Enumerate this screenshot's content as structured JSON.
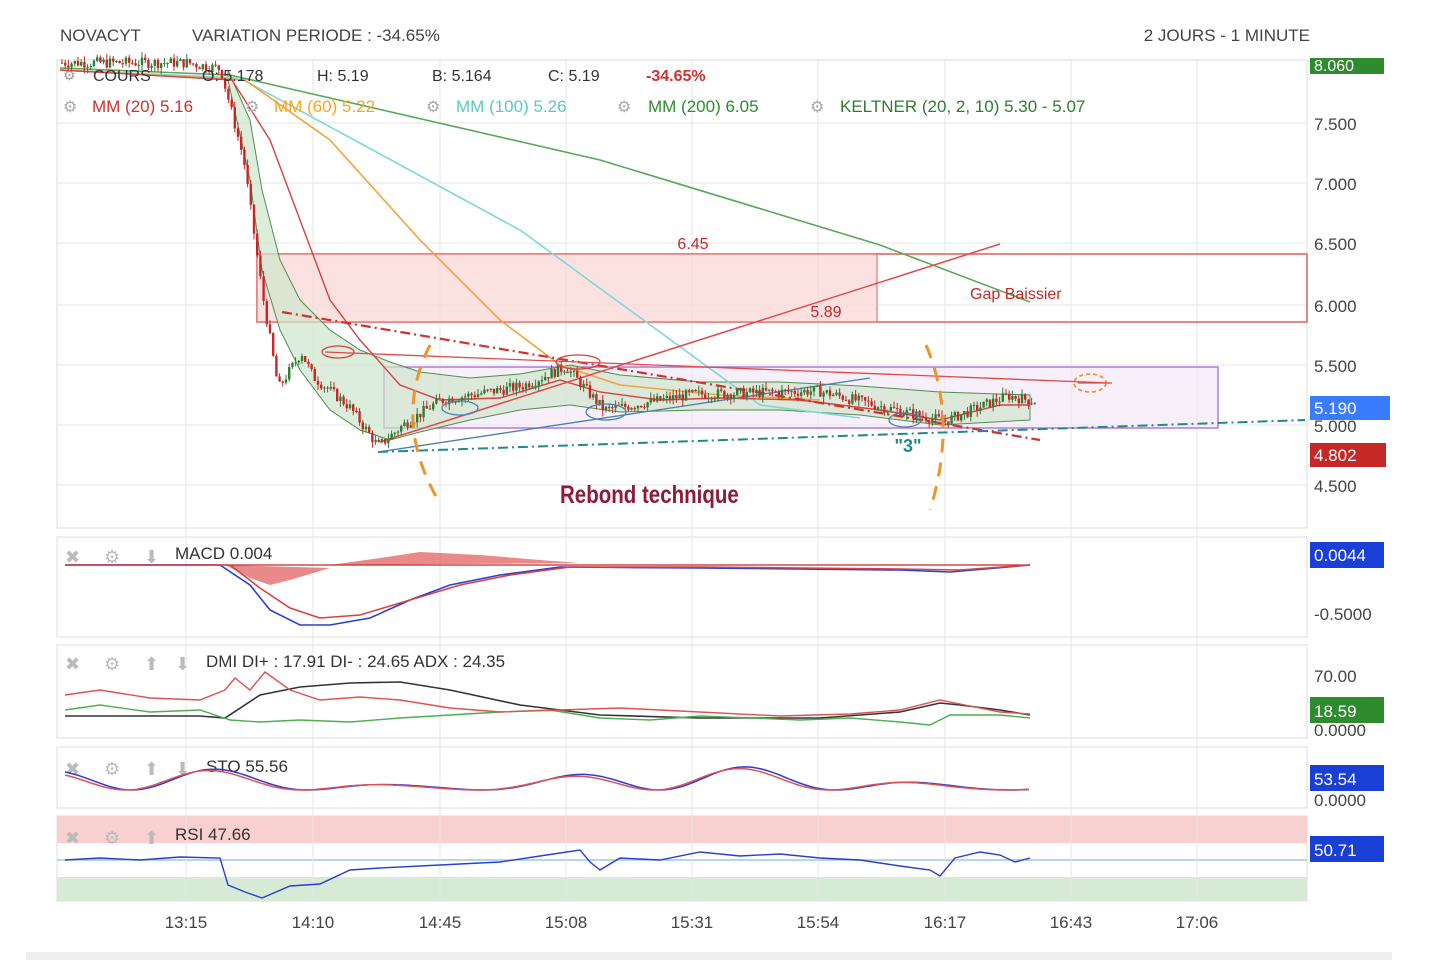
{
  "header": {
    "symbol": "NOVACYT",
    "variation": "VARIATION PERIODE : -34.65%",
    "timeframe": "2 JOURS - 1 MINUTE"
  },
  "legend": {
    "cours_label": "COURS",
    "o": "O: 5.178",
    "h": "H: 5.19",
    "b": "B: 5.164",
    "c": "C: 5.19",
    "change": "-34.65%",
    "mm20": "MM (20)  5.16",
    "mm60": "MM (60)  5.22",
    "mm100": "MM (100)  5.26",
    "mm200": "MM (200)  6.05",
    "keltner": "KELTNER (20, 2, 10)  5.30 - 5.07"
  },
  "annotations": {
    "gap_high": "6.45",
    "gap_low": "5.89",
    "gap_label": "Gap Baissier",
    "rebound": "Rebond technique",
    "wave3": "\"3\""
  },
  "price_badges": {
    "top": "8.060",
    "current": "5.190",
    "low": "4.802"
  },
  "price_axis": [
    "7.500",
    "7.000",
    "6.500",
    "6.000",
    "5.500",
    "5.000",
    "4.500"
  ],
  "time_axis": [
    "13:15",
    "14:10",
    "14:45",
    "15:08",
    "15:31",
    "15:54",
    "16:17",
    "16:43",
    "17:06"
  ],
  "macd": {
    "label": "MACD  0.004",
    "badge": "0.0044",
    "axis": [
      "-0.5000"
    ]
  },
  "dmi": {
    "label": "DMI  DI+ : 17.91  DI- : 24.65  ADX : 24.35",
    "badge": "18.59",
    "axis": [
      "70.00",
      "0.0000"
    ]
  },
  "sto": {
    "label": "STO  55.56",
    "badge": "53.54",
    "axis": [
      "0.0000"
    ]
  },
  "rsi": {
    "label": "RSI  47.66",
    "badge": "50.71"
  },
  "colors": {
    "mm20": "#d32f2f",
    "mm60": "#f5a623",
    "mm100": "#6fd3d3",
    "mm200": "#2e8b2e",
    "keltner": "#3a7d3a",
    "up": "#2e7d32",
    "down": "#c62828",
    "badge_blue": "#1a3fd6",
    "badge_red": "#c62828",
    "badge_green": "#2e8b2e"
  },
  "chart_data": {
    "type": "candlestick",
    "title": "NOVACYT",
    "timeframe": "2 JOURS - 1 MINUTE",
    "ylim": [
      4.3,
      8.1
    ],
    "x_ticks": [
      "13:15",
      "14:10",
      "14:45",
      "15:08",
      "15:31",
      "15:54",
      "16:17",
      "16:43",
      "17:06"
    ],
    "ohlc_last": {
      "open": 5.178,
      "high": 5.19,
      "low": 5.164,
      "close": 5.19,
      "change_pct": -34.65
    },
    "price_path": [
      [
        "13:15",
        8.0
      ],
      [
        "13:30",
        7.95
      ],
      [
        "13:40",
        7.2
      ],
      [
        "13:48",
        6.1
      ],
      [
        "13:55",
        5.3
      ],
      [
        "14:05",
        5.6
      ],
      [
        "14:10",
        5.4
      ],
      [
        "14:20",
        5.15
      ],
      [
        "14:28",
        4.82
      ],
      [
        "14:35",
        5.0
      ],
      [
        "14:45",
        5.2
      ],
      [
        "15:00",
        5.32
      ],
      [
        "15:08",
        5.48
      ],
      [
        "15:15",
        5.12
      ],
      [
        "15:31",
        5.25
      ],
      [
        "15:54",
        5.28
      ],
      [
        "16:10",
        5.1
      ],
      [
        "16:17",
        5.03
      ],
      [
        "16:30",
        5.24
      ],
      [
        "16:36",
        5.19
      ]
    ],
    "indicators": {
      "mm20": 5.16,
      "mm60": 5.22,
      "mm100": 5.26,
      "mm200": 6.05,
      "keltner_upper": 5.3,
      "keltner_lower": 5.07
    },
    "gap": {
      "high": 6.45,
      "low": 5.89,
      "label": "Gap Baissier"
    },
    "subpanels": {
      "macd": 0.004,
      "macd_signal": 0.0044,
      "dmi_plus": 17.91,
      "dmi_minus": 24.65,
      "adx": 24.35,
      "sto": 55.56,
      "sto_signal": 53.54,
      "rsi": 47.66,
      "rsi_signal": 50.71
    }
  }
}
